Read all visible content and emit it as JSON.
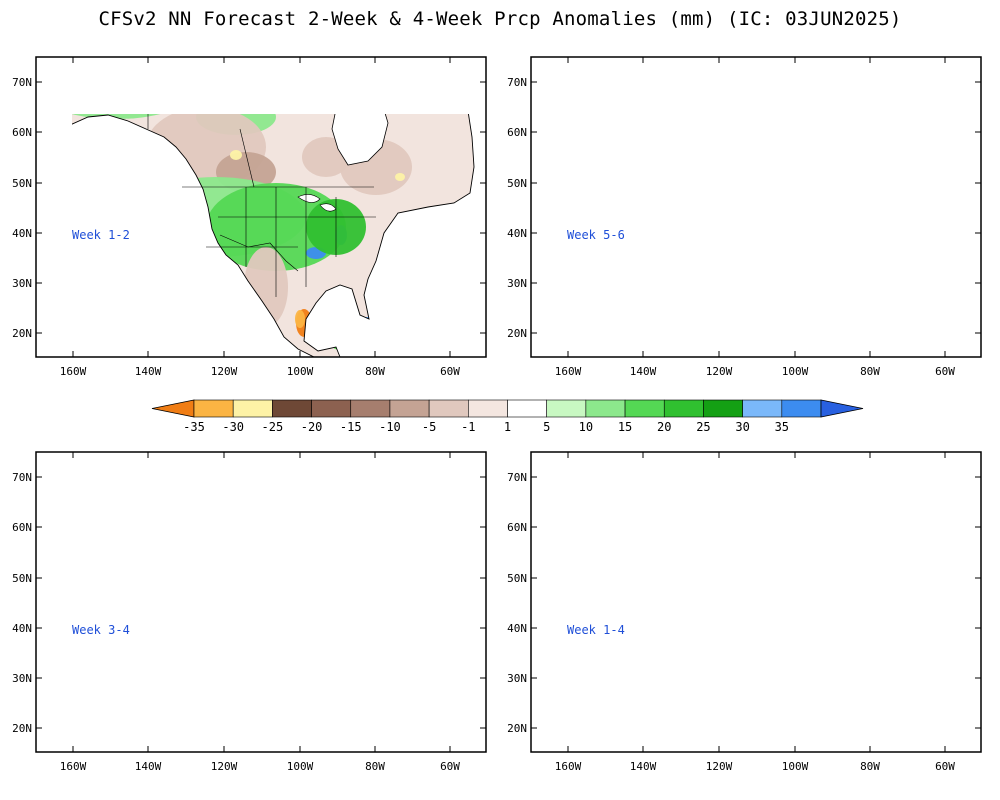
{
  "title": "CFSv2 NN Forecast 2-Week & 4-Week Prcp Anomalies (mm) (IC: 03JUN2025)",
  "lat_labels": [
    "70N",
    "60N",
    "50N",
    "40N",
    "30N",
    "20N"
  ],
  "lon_labels": [
    "160W",
    "140W",
    "120W",
    "100W",
    "80W",
    "60W"
  ],
  "panels": [
    {
      "label": "Week 1-2"
    },
    {
      "label": "Week 5-6"
    },
    {
      "label": "Week 3-4"
    },
    {
      "label": "Week 1-4"
    }
  ],
  "colorbar": {
    "ticks": [
      "-35",
      "-30",
      "-25",
      "-20",
      "-15",
      "-10",
      "-5",
      "-1",
      "1",
      "5",
      "10",
      "15",
      "20",
      "25",
      "30",
      "35"
    ],
    "colors": [
      "#f07d14",
      "#fbb443",
      "#fdf2a6",
      "#6e4836",
      "#8c6150",
      "#a67e6e",
      "#c4a394",
      "#e0c8be",
      "#f4e6e0",
      "#ffffff",
      "#c8f8c2",
      "#8ce88c",
      "#54d854",
      "#30c030",
      "#14a014",
      "#7ab8fa",
      "#3c8cf0",
      "#2860e0"
    ]
  },
  "colors": {
    "panel_label": "#1f4fd8",
    "land_base": "#f2e4de",
    "ocean": "#ffffff"
  }
}
